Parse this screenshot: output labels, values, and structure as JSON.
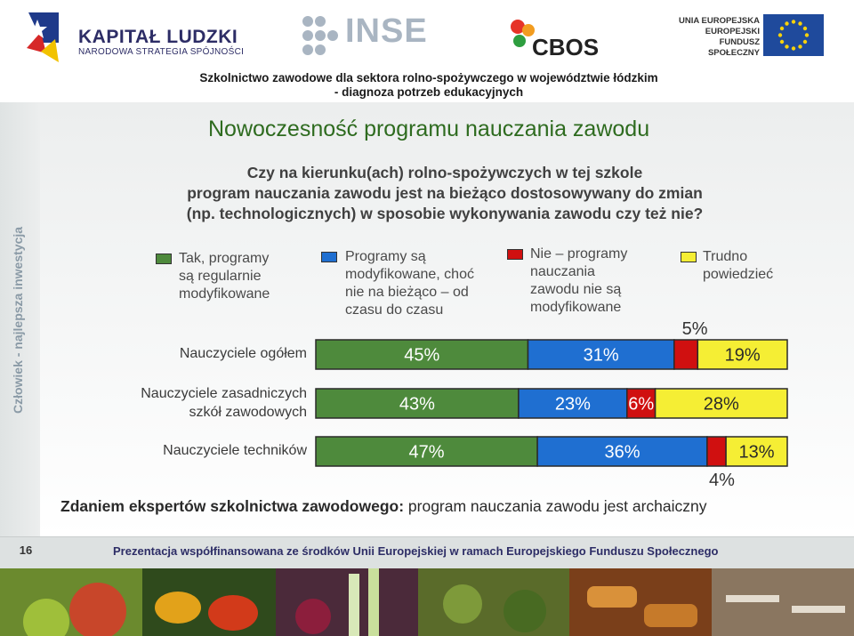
{
  "header": {
    "kl_title": "KAPITAŁ LUDZKI",
    "kl_subtitle": "NARODOWA STRATEGIA SPÓJNOŚCI",
    "inse": "INSE",
    "cbos": "CBOS",
    "ue_line1": "UNIA EUROPEJSKA",
    "ue_line2": "EUROPEJSKI",
    "ue_line3": "FUNDUSZ SPOŁECZNY",
    "project_line1": "Szkolnictwo zawodowe dla sektora rolno-spożywczego w województwie łódzkim",
    "project_line2": "- diagnoza potrzeb edukacyjnych"
  },
  "side_text": "Człowiek - najlepsza inwestycja",
  "slide_title": "Nowoczesność programu nauczania zawodu",
  "question": {
    "line1": "Czy na kierunku(ach) rolno-spożywczych w tej szkole",
    "line2": "program nauczania zawodu jest na bieżąco dostosowywany do zmian",
    "line3": "(np. technologicznych) w sposobie wykonywania zawodu czy też nie?"
  },
  "expert_note": {
    "bold": "Zdaniem ekspertów szkolnictwa zawodowego:",
    "rest": " program nauczania zawodu jest archaiczny"
  },
  "footer": {
    "page_number": "16",
    "text": "Prezentacja współfinansowana ze środków Unii Europejskiej w ramach Europejskiego Funduszu Społecznego"
  },
  "chart_data": {
    "type": "bar",
    "orientation": "horizontal",
    "stacked": true,
    "categories": [
      "Nauczyciele ogółem",
      "Nauczyciele zasadniczych szkół zawodowych",
      "Nauczyciele techników"
    ],
    "category_lines": [
      [
        "Nauczyciele ogółem"
      ],
      [
        "Nauczyciele zasadniczych",
        "szkół zawodowych"
      ],
      [
        "Nauczyciele techników"
      ]
    ],
    "series": [
      {
        "name": "Tak, programy są regularnie modyfikowane",
        "name_lines": [
          "Tak, programy",
          "są regularnie",
          "modyfikowane"
        ],
        "color": "#4e8a3c",
        "values": [
          45,
          43,
          47
        ]
      },
      {
        "name": "Programy są modyfikowane, choć nie na bieżąco – od czasu do czasu",
        "name_lines": [
          "Programy są",
          "modyfikowane, choć",
          "nie na bieżąco – od",
          "czasu do czasu"
        ],
        "color": "#1f6fd1",
        "values": [
          31,
          23,
          36
        ]
      },
      {
        "name": "Nie – programy nauczania zawodu nie są modyfikowane",
        "name_lines": [
          "Nie – programy",
          "nauczania",
          "zawodu nie są",
          "modyfikowane"
        ],
        "color": "#d01010",
        "values": [
          5,
          6,
          4
        ]
      },
      {
        "name": "Trudno powiedzieć",
        "name_lines": [
          "Trudno",
          "powiedzieć"
        ],
        "color": "#f5ee34",
        "values": [
          19,
          28,
          13
        ]
      }
    ],
    "data_labels": [
      [
        "45%",
        "31%",
        "5%",
        "19%"
      ],
      [
        "43%",
        "23%",
        "6%",
        "28%"
      ],
      [
        "47%",
        "36%",
        "4%",
        "13%"
      ]
    ],
    "xlim": [
      0,
      100
    ]
  }
}
